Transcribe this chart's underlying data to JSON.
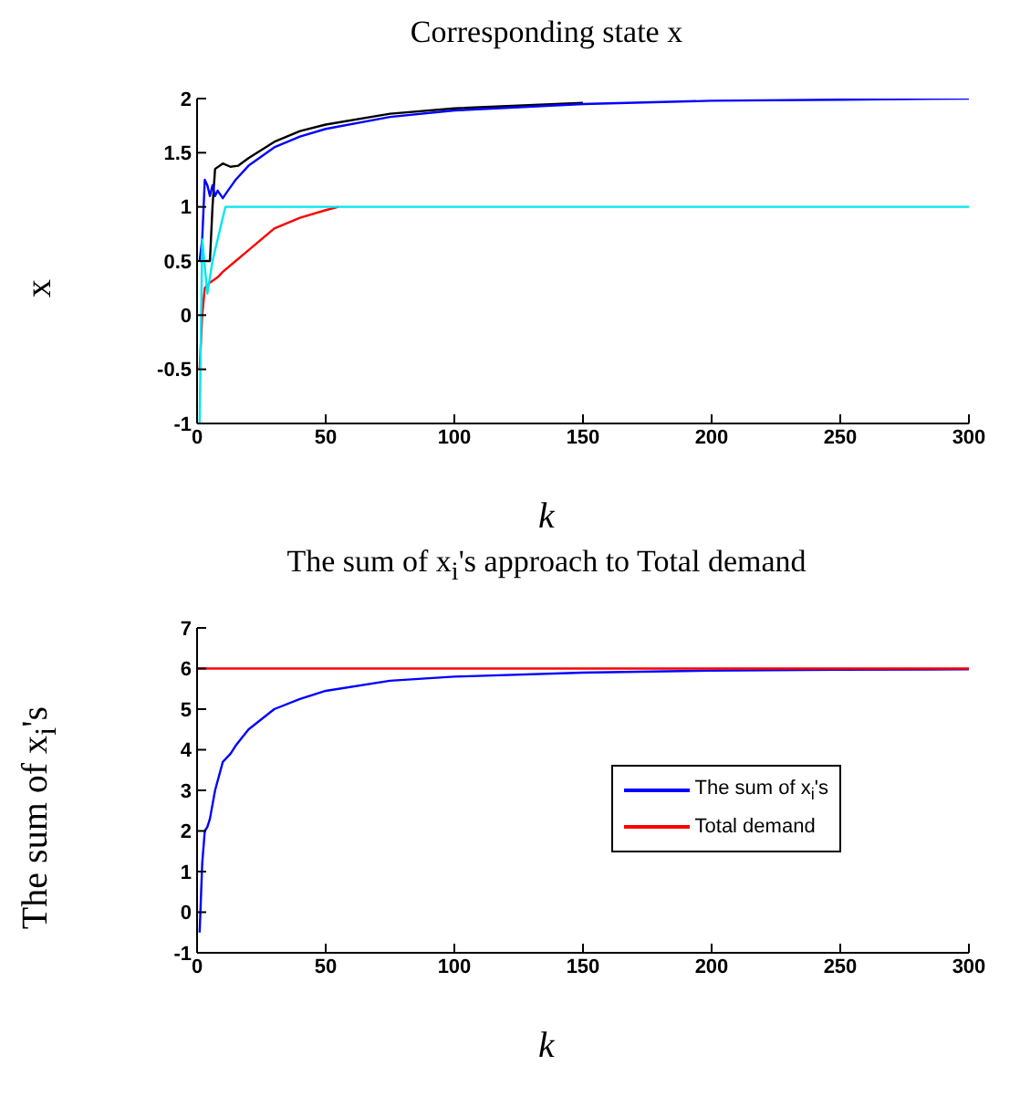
{
  "chart_data": [
    {
      "type": "line",
      "title": "Corresponding state x",
      "xlabel": "k",
      "ylabel": "x",
      "xlim": [
        0,
        300
      ],
      "xticks": [
        0,
        50,
        100,
        150,
        200,
        250,
        300
      ],
      "ylim": [
        -1,
        2
      ],
      "yticks": [
        -1,
        -0.5,
        0,
        0.5,
        1,
        1.5,
        2
      ],
      "grid": false,
      "legend": false,
      "series": [
        {
          "color": "#000000",
          "x": [
            1,
            3,
            5,
            6,
            7,
            10,
            13,
            16,
            20,
            30,
            40,
            50,
            75,
            100,
            150
          ],
          "values": [
            0.5,
            0.5,
            0.5,
            1.0,
            1.35,
            1.4,
            1.37,
            1.38,
            1.45,
            1.6,
            1.7,
            1.76,
            1.86,
            1.91,
            1.96
          ]
        },
        {
          "color": "#0000ff",
          "x": [
            1,
            2,
            3,
            4,
            5,
            6,
            7,
            8,
            10,
            12,
            15,
            20,
            30,
            40,
            50,
            75,
            100,
            150,
            200,
            250,
            300
          ],
          "values": [
            0.5,
            0.7,
            1.25,
            1.2,
            1.1,
            1.2,
            1.1,
            1.15,
            1.08,
            1.15,
            1.25,
            1.38,
            1.55,
            1.65,
            1.72,
            1.83,
            1.89,
            1.95,
            1.98,
            1.99,
            2.0
          ]
        },
        {
          "color": "#ff0000",
          "x": [
            1,
            2,
            3,
            5,
            8,
            10,
            15,
            20,
            30,
            40,
            50,
            55
          ],
          "values": [
            -0.5,
            0.0,
            0.25,
            0.3,
            0.35,
            0.4,
            0.5,
            0.6,
            0.8,
            0.9,
            0.97,
            1
          ]
        },
        {
          "color": "#00e5ee",
          "x": [
            1,
            2,
            4,
            6,
            11,
            50,
            100,
            200,
            300
          ],
          "values": [
            -1,
            0.7,
            0.2,
            0.5,
            1,
            1,
            1,
            1,
            1
          ]
        }
      ]
    },
    {
      "type": "line",
      "title": "The sum of x$_{i}$'s approach to Total demand",
      "xlabel": "k",
      "ylabel": "The sum of x$_{i}$'s",
      "xlim": [
        0,
        300
      ],
      "xticks": [
        0,
        50,
        100,
        150,
        200,
        250,
        300
      ],
      "ylim": [
        -1,
        7
      ],
      "yticks": [
        -1,
        0,
        1,
        2,
        3,
        4,
        5,
        6,
        7
      ],
      "grid": false,
      "legend": "right",
      "series": [
        {
          "name": "The sum of x$_{i}$'s",
          "color": "#0000ff",
          "x": [
            1,
            2,
            3,
            4,
            5,
            7,
            10,
            13,
            15,
            20,
            30,
            40,
            50,
            75,
            100,
            150,
            200,
            250,
            300
          ],
          "values": [
            -0.5,
            1.2,
            2.0,
            2.1,
            2.3,
            3.0,
            3.7,
            3.9,
            4.1,
            4.5,
            5.0,
            5.25,
            5.45,
            5.7,
            5.8,
            5.9,
            5.95,
            5.97,
            5.98
          ]
        },
        {
          "name": "Total demand",
          "color": "#ff0000",
          "x": [
            0,
            300
          ],
          "values": [
            6,
            6
          ]
        }
      ]
    }
  ]
}
